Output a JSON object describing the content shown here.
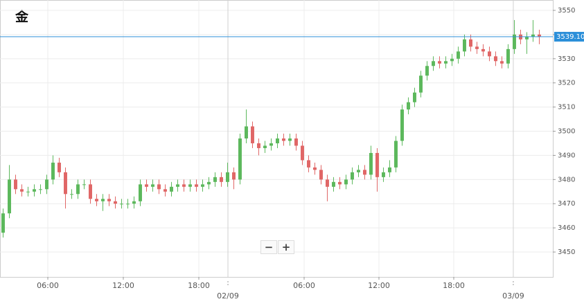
{
  "chart_data": {
    "type": "candlestick",
    "title": "金",
    "xlim": [
      -0.5,
      88.17
    ],
    "ylim": [
      3439.7,
      3554.3
    ],
    "yticks": [
      3450,
      3460,
      3470,
      3480,
      3490,
      3500,
      3510,
      3520,
      3530,
      3540,
      3550
    ],
    "xticks": [
      {
        "value": 7.17,
        "label": "06:00"
      },
      {
        "value": 19.28,
        "label": "12:00"
      },
      {
        "value": 31.39,
        "label": "18:00"
      },
      {
        "value": 48.28,
        "label": "06:00"
      },
      {
        "value": 60.28,
        "label": "12:00"
      },
      {
        "value": 72.28,
        "label": "18:00"
      }
    ],
    "date_ticks": [
      {
        "value": 36.06,
        "label": "02/09"
      },
      {
        "value": 81.83,
        "label": "03/09"
      }
    ],
    "grid": true,
    "up_color": "#5cb85c",
    "down_color": "#e06666",
    "last_price": {
      "value": 3539.1,
      "label": "3539.10",
      "color": "#2b8fd9"
    },
    "open": [
      3458,
      3466,
      3480,
      3476,
      3475,
      3475,
      3476,
      3476,
      3480,
      3487,
      3483,
      3474,
      3474,
      3478,
      3478,
      3472,
      3471,
      3472,
      3471,
      3470,
      3470,
      3470,
      3471,
      3478,
      3477,
      3478,
      3476,
      3475,
      3477,
      3478,
      3477,
      3478,
      3477,
      3478,
      3479,
      3481,
      3479,
      3483,
      3480,
      3497,
      3502,
      3495,
      3493,
      3494,
      3495,
      3497,
      3496,
      3497,
      3494,
      3488,
      3485,
      3484,
      3480,
      3477,
      3479,
      3478,
      3480,
      3483,
      3484,
      3482,
      3491,
      3481,
      3483,
      3485,
      3496,
      3509,
      3512,
      3516,
      3523,
      3527,
      3529,
      3528,
      3529,
      3530,
      3533,
      3538,
      3535,
      3534,
      3533,
      3531,
      3529,
      3528,
      3534,
      3540,
      3538,
      3539,
      3540
    ],
    "high": [
      3468,
      3486,
      3482,
      3478,
      3477,
      3478,
      3478,
      3482,
      3490,
      3489,
      3485,
      3476,
      3480,
      3480,
      3480,
      3474,
      3474,
      3474,
      3473,
      3472,
      3472,
      3473,
      3480,
      3480,
      3480,
      3480,
      3478,
      3479,
      3480,
      3480,
      3480,
      3480,
      3480,
      3481,
      3483,
      3483,
      3487,
      3485,
      3499,
      3509,
      3504,
      3497,
      3496,
      3497,
      3499,
      3499,
      3499,
      3499,
      3496,
      3490,
      3487,
      3486,
      3482,
      3481,
      3481,
      3482,
      3485,
      3486,
      3486,
      3494,
      3493,
      3485,
      3488,
      3498,
      3511,
      3514,
      3518,
      3525,
      3529,
      3531,
      3531,
      3531,
      3532,
      3535,
      3540,
      3540,
      3537,
      3536,
      3535,
      3533,
      3531,
      3536,
      3546,
      3542,
      3541,
      3546,
      3542
    ],
    "low": [
      3456,
      3464,
      3474,
      3473,
      3473,
      3473,
      3474,
      3474,
      3478,
      3481,
      3468,
      3472,
      3472,
      3476,
      3470,
      3469,
      3467,
      3469,
      3468,
      3468,
      3468,
      3468,
      3469,
      3475,
      3475,
      3474,
      3473,
      3473,
      3475,
      3475,
      3475,
      3475,
      3475,
      3476,
      3477,
      3477,
      3477,
      3476,
      3478,
      3495,
      3493,
      3490,
      3491,
      3492,
      3493,
      3494,
      3494,
      3492,
      3486,
      3483,
      3482,
      3478,
      3471,
      3475,
      3476,
      3476,
      3478,
      3481,
      3480,
      3480,
      3475,
      3479,
      3481,
      3483,
      3494,
      3507,
      3510,
      3514,
      3521,
      3525,
      3526,
      3526,
      3527,
      3528,
      3531,
      3533,
      3532,
      3531,
      3529,
      3527,
      3526,
      3526,
      3532,
      3536,
      3532,
      3537,
      3536
    ],
    "close": [
      3466,
      3480,
      3476,
      3475,
      3475,
      3476,
      3476,
      3480,
      3487,
      3483,
      3474,
      3474,
      3478,
      3478,
      3472,
      3471,
      3472,
      3471,
      3470,
      3470,
      3470,
      3471,
      3478,
      3477,
      3478,
      3476,
      3475,
      3477,
      3478,
      3477,
      3478,
      3477,
      3478,
      3479,
      3481,
      3479,
      3483,
      3480,
      3497,
      3502,
      3495,
      3493,
      3494,
      3495,
      3497,
      3496,
      3497,
      3494,
      3488,
      3485,
      3484,
      3480,
      3477,
      3479,
      3478,
      3480,
      3483,
      3484,
      3482,
      3491,
      3481,
      3483,
      3485,
      3496,
      3509,
      3512,
      3516,
      3523,
      3527,
      3529,
      3528,
      3529,
      3530,
      3533,
      3538,
      3535,
      3534,
      3533,
      3531,
      3529,
      3528,
      3534,
      3540,
      3538,
      3539,
      3540,
      3539.1
    ]
  },
  "controls": {
    "zoom_out": "−",
    "zoom_in": "+"
  }
}
